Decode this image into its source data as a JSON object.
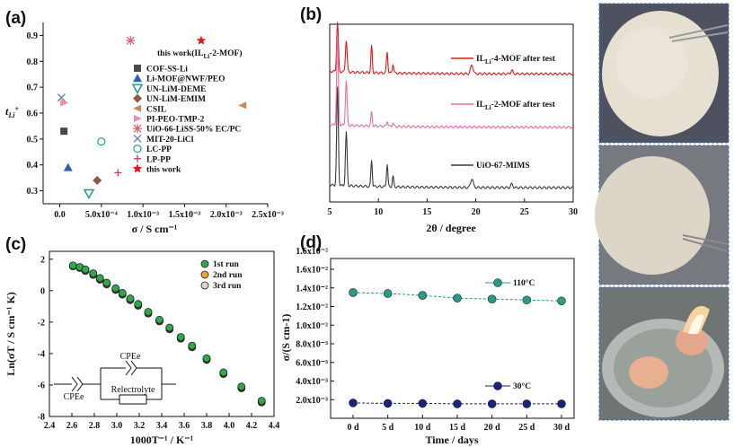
{
  "panels": {
    "a": "(a)",
    "b": "(b)",
    "c": "(c)",
    "d": "(d)"
  },
  "chart_data": [
    {
      "id": "a",
      "type": "scatter",
      "xlabel": "σ / S cm⁻¹",
      "ylabel": "tLi+",
      "xlim": [
        -0.0002,
        0.0025
      ],
      "ylim": [
        0.25,
        0.95
      ],
      "xticks": [
        "0.0",
        "5.0x10⁻⁴",
        "1.0x10⁻³",
        "1.5x10⁻³",
        "2.0x10⁻³",
        "2.5x10⁻³"
      ],
      "xtick_values": [
        0,
        0.0005,
        0.001,
        0.0015,
        0.002,
        0.0025
      ],
      "yticks": [
        "0.3",
        "0.4",
        "0.5",
        "0.6",
        "0.7",
        "0.8",
        "0.9"
      ],
      "ytick_values": [
        0.3,
        0.4,
        0.5,
        0.6,
        0.7,
        0.8,
        0.9
      ],
      "annotation": "this work(IL",
      "annotation_sub": "Li",
      "annotation_end": "-2-MOF)",
      "series": [
        {
          "name": "COF-SS-Li",
          "marker": "square",
          "color": "#4a4a4a",
          "x": 5e-05,
          "y": 0.53
        },
        {
          "name": "Li-MOF@NWF/PEO",
          "marker": "tri-up",
          "color": "#2f5fb0",
          "x": 0.0001,
          "y": 0.39
        },
        {
          "name": "UN-LiM-DEME",
          "marker": "tri-down-open",
          "color": "#1e9a8a",
          "x": 0.00035,
          "y": 0.29
        },
        {
          "name": "UN-LiM-EMIM",
          "marker": "diamond",
          "color": "#8a5a4a",
          "x": 0.00045,
          "y": 0.34
        },
        {
          "name": "CSIL",
          "marker": "tri-left",
          "color": "#c08a5a",
          "x": 0.0022,
          "y": 0.63
        },
        {
          "name": "PI-PEO-TMP-2",
          "marker": "tri-right",
          "color": "#f08ab0",
          "x": 5e-05,
          "y": 0.64
        },
        {
          "name": "UiO-66-LiSS-50% EC/PC",
          "marker": "star-x",
          "color": "#e05a6a",
          "x": 0.00085,
          "y": 0.88
        },
        {
          "name": "MIT-20-LiCl",
          "marker": "x",
          "color": "#5a7ab0",
          "x": 2e-05,
          "y": 0.66
        },
        {
          "name": "LC-PP",
          "marker": "circle-hatch",
          "color": "#2ea88a",
          "x": 0.0005,
          "y": 0.49
        },
        {
          "name": "LP-PP",
          "marker": "plus",
          "color": "#c0405a",
          "x": 0.0007,
          "y": 0.37
        },
        {
          "name": "this work",
          "marker": "star",
          "color": "#ee1111",
          "x": 0.0017,
          "y": 0.88
        }
      ]
    },
    {
      "id": "b",
      "type": "line",
      "xlabel": "2θ / degree",
      "xlim": [
        5,
        30
      ],
      "xticks": [
        "5",
        "10",
        "15",
        "20",
        "25",
        "30"
      ],
      "xtick_values": [
        5,
        10,
        15,
        20,
        25,
        30
      ],
      "peaks_2theta": [
        5.8,
        6.7,
        9.3,
        10.9,
        11.5,
        19.6,
        23.7
      ],
      "series": [
        {
          "name": "ILLi-4-MOF after test",
          "label_main": "IL",
          "label_sub": "Li",
          "label_end": "-4-MOF after test",
          "color": "#e8161b",
          "baseline": 0.72,
          "heights": [
            0.28,
            0.18,
            0.15,
            0.12,
            0.05,
            0.05,
            0.02
          ]
        },
        {
          "name": "ILLi-2-MOF after test",
          "label_main": "IL",
          "label_sub": "Li",
          "label_end": "-2-MOF after test",
          "color": "#f06aa0",
          "baseline": 0.42,
          "heights": [
            0.5,
            0.25,
            0.08,
            0.03,
            0.02,
            0.0,
            0.0
          ]
        },
        {
          "name": "UiO-67-MIMS",
          "label_main": "UiO-67-MIMS",
          "label_sub": "",
          "label_end": "",
          "color": "#3a3a3a",
          "baseline": 0.08,
          "heights": [
            0.55,
            0.3,
            0.15,
            0.13,
            0.06,
            0.05,
            0.02
          ]
        }
      ]
    },
    {
      "id": "c",
      "type": "scatter",
      "xlabel": "1000T⁻¹ / K⁻¹",
      "ylabel": "Ln(σT / S cm⁻¹ K)",
      "xlim": [
        2.4,
        4.4
      ],
      "ylim": [
        -8,
        2.5
      ],
      "xticks": [
        "2.4",
        "2.6",
        "2.8",
        "3.0",
        "3.2",
        "3.4",
        "3.6",
        "3.8",
        "4.0",
        "4.2",
        "4.4"
      ],
      "xtick_values": [
        2.4,
        2.6,
        2.8,
        3.0,
        3.2,
        3.4,
        3.6,
        3.8,
        4.0,
        4.2,
        4.4
      ],
      "yticks": [
        "-8",
        "-6",
        "-4",
        "-2",
        "0",
        "2"
      ],
      "ytick_values": [
        -8,
        -6,
        -4,
        -2,
        0,
        2
      ],
      "x": [
        2.61,
        2.67,
        2.72,
        2.79,
        2.85,
        2.91,
        2.99,
        3.05,
        3.12,
        3.19,
        3.28,
        3.38,
        3.47,
        3.57,
        3.67,
        3.8,
        3.95,
        4.11,
        4.29
      ],
      "series": [
        {
          "name": "1st run",
          "color": "#2ea84a",
          "y": [
            1.6,
            1.5,
            1.35,
            1.1,
            0.8,
            0.5,
            0.15,
            -0.15,
            -0.5,
            -0.85,
            -1.35,
            -1.85,
            -2.35,
            -2.95,
            -3.5,
            -4.3,
            -5.2,
            -6.1,
            -7.0
          ]
        },
        {
          "name": "2nd run",
          "color": "#f0a030",
          "y": [
            1.58,
            1.48,
            1.3,
            1.05,
            0.75,
            0.45,
            0.1,
            -0.2,
            -0.55,
            -0.9,
            -1.4,
            -1.9,
            -2.4,
            -3.0,
            -3.55,
            -4.35,
            -5.25,
            -6.15,
            -7.05
          ]
        },
        {
          "name": "3rd run",
          "color": "#d8d8c8",
          "y": [
            1.55,
            1.45,
            1.25,
            1.0,
            0.7,
            0.4,
            0.05,
            -0.25,
            -0.6,
            -0.95,
            -1.45,
            -1.95,
            -2.45,
            -3.05,
            -3.6,
            -4.4,
            -5.3,
            -6.2,
            -7.1
          ]
        }
      ],
      "circuit": {
        "cpe_top": "CPEe",
        "cpe_left": "CPEe",
        "resistor": "Relectrolyte"
      }
    },
    {
      "id": "d",
      "type": "line",
      "xlabel": "Time / days",
      "ylabel": "σ/(S cm-1)",
      "ylim": [
        0,
        0.016
      ],
      "categories": [
        "0 d",
        "5 d",
        "10 d",
        "15 d",
        "20 d",
        "25 d",
        "30 d"
      ],
      "yticks": [
        "2.0x10⁻³",
        "4.0x10⁻³",
        "6.0x10⁻³",
        "8.0x10⁻³",
        "1.0x10⁻²",
        "1.2x10⁻²",
        "1.4x10⁻²",
        "1.6x10⁻²"
      ],
      "ytick_values": [
        0.002,
        0.004,
        0.006,
        0.008,
        0.01,
        0.012,
        0.014,
        0.016
      ],
      "top_label": "1.6x10⁻²",
      "series": [
        {
          "name": "110°C",
          "color": "#2a9a86",
          "values": [
            0.0135,
            0.0134,
            0.0132,
            0.0129,
            0.0128,
            0.0127,
            0.0126
          ]
        },
        {
          "name": "30°C",
          "color": "#1a237e",
          "values": [
            0.00165,
            0.0016,
            0.0016,
            0.00155,
            0.00155,
            0.00155,
            0.00155
          ]
        }
      ]
    }
  ]
}
